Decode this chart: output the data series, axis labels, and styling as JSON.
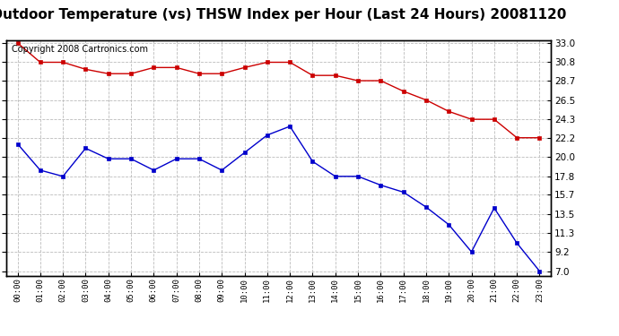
{
  "title": "Outdoor Temperature (vs) THSW Index per Hour (Last 24 Hours) 20081120",
  "copyright": "Copyright 2008 Cartronics.com",
  "hours": [
    "00:00",
    "01:00",
    "02:00",
    "03:00",
    "04:00",
    "05:00",
    "06:00",
    "07:00",
    "08:00",
    "09:00",
    "10:00",
    "11:00",
    "12:00",
    "13:00",
    "14:00",
    "15:00",
    "16:00",
    "17:00",
    "18:00",
    "19:00",
    "20:00",
    "21:00",
    "22:00",
    "23:00"
  ],
  "red_series": [
    33.0,
    30.8,
    30.8,
    30.0,
    29.5,
    29.5,
    30.2,
    30.2,
    29.5,
    29.5,
    30.2,
    30.8,
    30.8,
    29.3,
    29.3,
    28.7,
    28.7,
    27.5,
    26.5,
    25.2,
    24.3,
    24.3,
    22.2,
    22.2
  ],
  "blue_series": [
    21.5,
    18.5,
    17.8,
    21.0,
    19.8,
    19.8,
    18.5,
    19.8,
    19.8,
    18.5,
    20.5,
    22.5,
    23.5,
    19.5,
    17.8,
    17.8,
    16.8,
    16.0,
    14.3,
    12.3,
    9.2,
    14.2,
    10.2,
    7.0
  ],
  "yticks": [
    7.0,
    9.2,
    11.3,
    13.5,
    15.7,
    17.8,
    20.0,
    22.2,
    24.3,
    26.5,
    28.7,
    30.8,
    33.0
  ],
  "ylim_min": 7.0,
  "ylim_max": 33.0,
  "red_color": "#cc0000",
  "blue_color": "#0000cc",
  "bg_color": "#ffffff",
  "grid_color": "#bbbbbb",
  "title_fontsize": 11,
  "copyright_fontsize": 7
}
